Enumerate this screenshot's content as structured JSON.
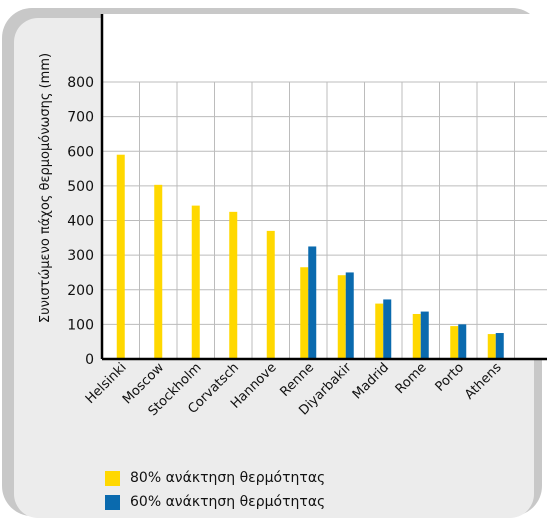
{
  "chart_data": {
    "type": "bar",
    "ylabel": "Συνιστώμενο πάχος θερμομόνωσης (mm)",
    "xlabel": "",
    "ylim": [
      0,
      800
    ],
    "yticks": [
      0,
      100,
      200,
      300,
      400,
      500,
      600,
      700,
      800
    ],
    "grid": true,
    "legend_position": "bottom-left",
    "categories": [
      "Helsinki",
      "Moscow",
      "Stockholm",
      "Corvatsch",
      "Hannove",
      "Renne",
      "Diyarbakir",
      "Madrid",
      "Rome",
      "Porto",
      "Athens"
    ],
    "series": [
      {
        "name": "80% ανάκτηση θερμότητας",
        "color": "#ffd800",
        "values": [
          590,
          503,
          443,
          425,
          370,
          265,
          242,
          160,
          130,
          95,
          72
        ]
      },
      {
        "name": "60% ανάκτηση θερμότητας",
        "color": "#0a6aae",
        "values": [
          null,
          null,
          null,
          null,
          null,
          325,
          250,
          172,
          137,
          100,
          75
        ]
      }
    ]
  }
}
